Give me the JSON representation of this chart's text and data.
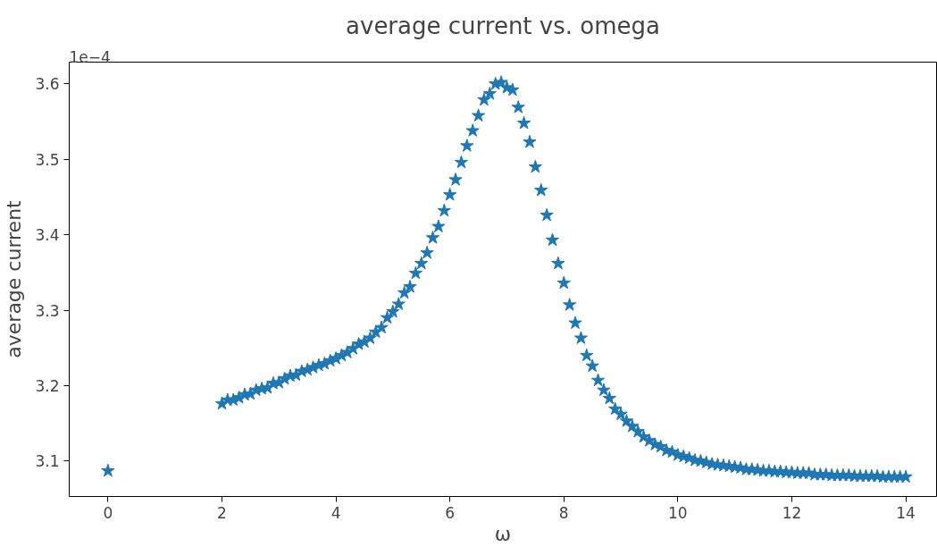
{
  "chart_data": {
    "type": "scatter",
    "title": "average current vs. omega",
    "xlabel": "ω",
    "ylabel": "average current",
    "annotations": [
      "1e−4"
    ],
    "marker": "star",
    "xlim": [
      -0.68,
      14.54
    ],
    "ylim": [
      3.053,
      3.629
    ],
    "xticks": [
      0,
      2,
      4,
      6,
      8,
      10,
      12,
      14
    ],
    "yticks": [
      3.1,
      3.2,
      3.3,
      3.4,
      3.5,
      3.6
    ],
    "x": [
      0,
      2.0,
      2.1,
      2.2,
      2.3,
      2.4,
      2.5,
      2.6,
      2.7,
      2.8,
      2.9,
      3.0,
      3.1,
      3.2,
      3.3,
      3.4,
      3.5,
      3.6,
      3.7,
      3.8,
      3.9,
      4.0,
      4.1,
      4.2,
      4.3,
      4.4,
      4.5,
      4.6,
      4.7,
      4.8,
      4.9,
      5.0,
      5.1,
      5.2,
      5.3,
      5.4,
      5.5,
      5.6,
      5.7,
      5.8,
      5.9,
      6.0,
      6.1,
      6.2,
      6.3,
      6.4,
      6.5,
      6.6,
      6.7,
      6.8,
      6.9,
      7.0,
      7.1,
      7.2,
      7.3,
      7.4,
      7.5,
      7.6,
      7.7,
      7.8,
      7.9,
      8.0,
      8.1,
      8.2,
      8.3,
      8.4,
      8.5,
      8.6,
      8.7,
      8.8,
      8.9,
      9.0,
      9.1,
      9.2,
      9.3,
      9.4,
      9.5,
      9.6,
      9.7,
      9.8,
      9.9,
      10.0,
      10.1,
      10.2,
      10.3,
      10.4,
      10.5,
      10.6,
      10.7,
      10.8,
      10.9,
      11.0,
      11.1,
      11.2,
      11.3,
      11.4,
      11.5,
      11.6,
      11.7,
      11.8,
      11.9,
      12.0,
      12.1,
      12.2,
      12.3,
      12.4,
      12.5,
      12.6,
      12.7,
      12.8,
      12.9,
      13.0,
      13.1,
      13.2,
      13.3,
      13.4,
      13.5,
      13.6,
      13.7,
      13.8,
      13.9,
      14.0
    ],
    "series": [
      {
        "color": "#1f77b4",
        "values": [
          3.087,
          3.176,
          3.181,
          3.181,
          3.184,
          3.188,
          3.189,
          3.194,
          3.196,
          3.197,
          3.203,
          3.204,
          3.209,
          3.213,
          3.214,
          3.219,
          3.221,
          3.224,
          3.227,
          3.229,
          3.233,
          3.236,
          3.24,
          3.244,
          3.249,
          3.255,
          3.258,
          3.263,
          3.271,
          3.277,
          3.29,
          3.298,
          3.308,
          3.323,
          3.331,
          3.349,
          3.362,
          3.376,
          3.396,
          3.411,
          3.432,
          3.453,
          3.473,
          3.496,
          3.518,
          3.538,
          3.558,
          3.579,
          3.587,
          3.6,
          3.602,
          3.595,
          3.592,
          3.569,
          3.548,
          3.523,
          3.49,
          3.459,
          3.426,
          3.393,
          3.362,
          3.336,
          3.307,
          3.283,
          3.263,
          3.24,
          3.226,
          3.207,
          3.194,
          3.183,
          3.169,
          3.162,
          3.153,
          3.146,
          3.139,
          3.132,
          3.127,
          3.122,
          3.119,
          3.114,
          3.112,
          3.108,
          3.106,
          3.104,
          3.101,
          3.1,
          3.098,
          3.096,
          3.095,
          3.094,
          3.093,
          3.092,
          3.091,
          3.089,
          3.089,
          3.088,
          3.087,
          3.087,
          3.086,
          3.086,
          3.085,
          3.085,
          3.084,
          3.084,
          3.084,
          3.082,
          3.082,
          3.082,
          3.081,
          3.081,
          3.081,
          3.081,
          3.08,
          3.08,
          3.08,
          3.08,
          3.08,
          3.079,
          3.079,
          3.079,
          3.079,
          3.079
        ]
      }
    ]
  }
}
